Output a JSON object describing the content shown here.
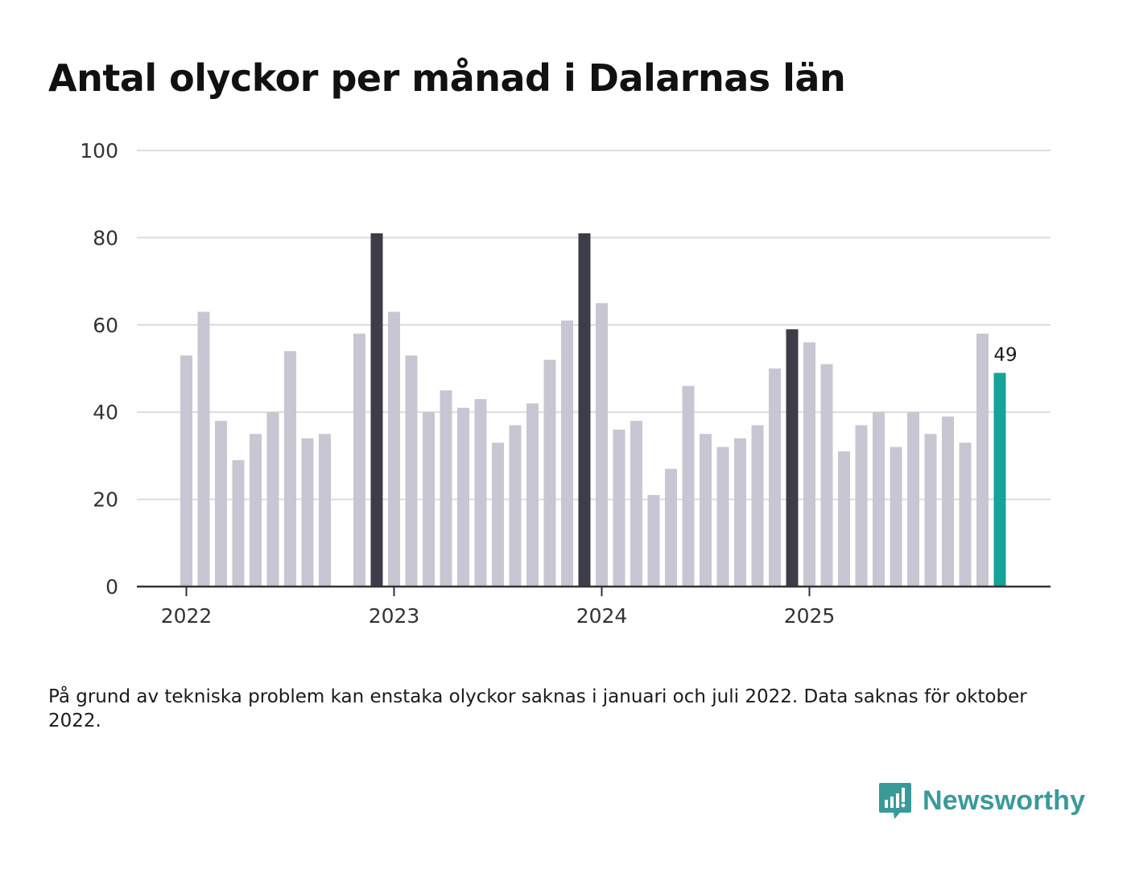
{
  "title": "Antal olyckor per månad i Dalarnas län",
  "note": "På grund av tekniska problem kan enstaka olyckor saknas i januari och juli 2022. Data saknas för oktober 2022.",
  "brand": {
    "name": "Newsworthy",
    "icon": "newsworthy-logo-icon"
  },
  "colors": {
    "default": "#c8c6d2",
    "highlight": "#3d3c4a",
    "current": "#15a39a",
    "grid": "#dcdcdc",
    "axis": "#333333"
  },
  "chart_data": {
    "type": "bar",
    "title": "Antal olyckor per månad i Dalarnas län",
    "xlabel": "",
    "ylabel": "",
    "ylim": [
      0,
      100
    ],
    "yticks": [
      "0",
      "20",
      "40",
      "60",
      "80",
      "100"
    ],
    "year_labels": [
      "2022",
      "2023",
      "2024",
      "2025"
    ],
    "start_month": "2022-01",
    "values": [
      53,
      63,
      38,
      29,
      35,
      40,
      54,
      34,
      35,
      null,
      58,
      81,
      63,
      53,
      40,
      45,
      41,
      43,
      33,
      37,
      42,
      52,
      61,
      81,
      65,
      36,
      38,
      21,
      27,
      46,
      35,
      32,
      34,
      37,
      50,
      59,
      56,
      51,
      31,
      37,
      40,
      32,
      40,
      35,
      39,
      33,
      58,
      49
    ],
    "highlight_indices": [
      11,
      23,
      35
    ],
    "current_index": 47,
    "value_label": "49",
    "grid": true
  }
}
